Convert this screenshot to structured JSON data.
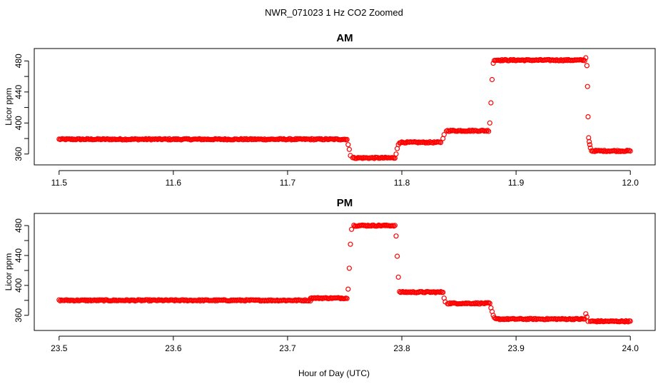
{
  "figure": {
    "title": "NWR_071023  1 Hz CO2 Zoomed",
    "xlabel": "Hour of Day (UTC)",
    "marker_color": "#ff0000"
  },
  "chart_data": [
    {
      "type": "scatter",
      "title": "AM",
      "ylabel": "Licor ppm",
      "xlim": [
        11.5,
        12.0
      ],
      "ylim": [
        352,
        490
      ],
      "xticks": [
        11.5,
        11.6,
        11.7,
        11.8,
        11.9,
        12.0
      ],
      "xtick_labels": [
        "11.5",
        "11.6",
        "11.7",
        "11.8",
        "11.9",
        "12.0"
      ],
      "yticks": [
        360,
        400,
        440,
        480
      ],
      "ytick_labels": [
        "360",
        "400",
        "440",
        "480"
      ],
      "grid": false,
      "legend": "none",
      "series": [
        {
          "color": "#ff0000",
          "segments": [
            {
              "x_start": 11.5,
              "x_end": 11.752,
              "y": 379
            },
            {
              "x_start": 11.757,
              "x_end": 11.794,
              "y": 355
            },
            {
              "x_start": 11.798,
              "x_end": 11.834,
              "y": 375
            },
            {
              "x_start": 11.839,
              "x_end": 11.876,
              "y": 390
            },
            {
              "x_start": 11.881,
              "x_end": 11.96,
              "y": 481
            },
            {
              "x_start": 11.966,
              "x_end": 12.0,
              "y": 364
            }
          ],
          "points": [
            {
              "x": 11.753,
              "y": 372
            },
            {
              "x": 11.754,
              "y": 366
            },
            {
              "x": 11.755,
              "y": 358
            },
            {
              "x": 11.795,
              "y": 360
            },
            {
              "x": 11.796,
              "y": 367
            },
            {
              "x": 11.797,
              "y": 372
            },
            {
              "x": 11.836,
              "y": 380
            },
            {
              "x": 11.837,
              "y": 385
            },
            {
              "x": 11.877,
              "y": 400
            },
            {
              "x": 11.878,
              "y": 426
            },
            {
              "x": 11.879,
              "y": 456
            },
            {
              "x": 11.88,
              "y": 477
            },
            {
              "x": 11.961,
              "y": 484
            },
            {
              "x": 11.962,
              "y": 474
            },
            {
              "x": 11.9625,
              "y": 447
            },
            {
              "x": 11.963,
              "y": 408
            },
            {
              "x": 11.9635,
              "y": 381
            },
            {
              "x": 11.964,
              "y": 376
            },
            {
              "x": 11.9645,
              "y": 372
            },
            {
              "x": 11.965,
              "y": 368
            }
          ]
        }
      ]
    },
    {
      "type": "scatter",
      "title": "PM",
      "ylabel": "Licor ppm",
      "xlim": [
        23.5,
        24.0
      ],
      "ylim": [
        346,
        490
      ],
      "xticks": [
        23.5,
        23.6,
        23.7,
        23.8,
        23.9,
        24.0
      ],
      "xtick_labels": [
        "23.5",
        "23.6",
        "23.7",
        "23.8",
        "23.9",
        "24.0"
      ],
      "yticks": [
        360,
        400,
        440,
        480
      ],
      "ytick_labels": [
        "360",
        "400",
        "440",
        "480"
      ],
      "grid": false,
      "legend": "none",
      "series": [
        {
          "color": "#ff0000",
          "segments": [
            {
              "x_start": 23.5,
              "x_end": 23.72,
              "y": 380
            },
            {
              "x_start": 23.72,
              "x_end": 23.752,
              "y": 383
            },
            {
              "x_start": 23.758,
              "x_end": 23.794,
              "y": 480
            },
            {
              "x_start": 23.798,
              "x_end": 23.836,
              "y": 391
            },
            {
              "x_start": 23.84,
              "x_end": 23.877,
              "y": 376
            },
            {
              "x_start": 23.882,
              "x_end": 23.96,
              "y": 355
            },
            {
              "x_start": 23.965,
              "x_end": 24.0,
              "y": 352
            }
          ],
          "points": [
            {
              "x": 23.753,
              "y": 395
            },
            {
              "x": 23.754,
              "y": 423
            },
            {
              "x": 23.755,
              "y": 455
            },
            {
              "x": 23.756,
              "y": 475
            },
            {
              "x": 23.795,
              "y": 466
            },
            {
              "x": 23.796,
              "y": 439
            },
            {
              "x": 23.797,
              "y": 411
            },
            {
              "x": 23.837,
              "y": 383
            },
            {
              "x": 23.838,
              "y": 378
            },
            {
              "x": 23.878,
              "y": 370
            },
            {
              "x": 23.879,
              "y": 365
            },
            {
              "x": 23.88,
              "y": 360
            },
            {
              "x": 23.881,
              "y": 357
            },
            {
              "x": 23.961,
              "y": 362
            },
            {
              "x": 23.962,
              "y": 358
            },
            {
              "x": 23.963,
              "y": 352
            }
          ]
        }
      ]
    }
  ]
}
